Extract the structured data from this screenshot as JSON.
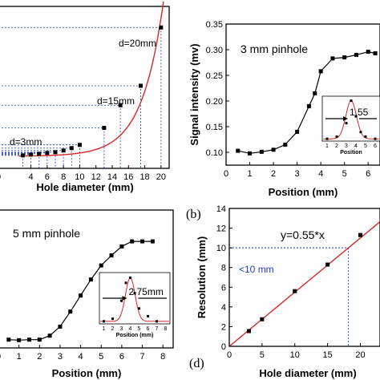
{
  "chart_data": [
    {
      "panel": "a",
      "type": "scatter",
      "xlabel": "Hole diameter (mm)",
      "ylabel": "",
      "xlim": [
        0,
        21
      ],
      "ylim": [
        0,
        10
      ],
      "xticks": [
        0,
        4,
        6,
        8,
        10,
        12,
        14,
        16,
        18,
        20
      ],
      "x": [
        3,
        4,
        5,
        6,
        7,
        8,
        9,
        10,
        13,
        15,
        17.5,
        20
      ],
      "y": [
        0.8,
        0.85,
        0.9,
        0.95,
        1.0,
        1.1,
        1.25,
        1.45,
        2.5,
        3.9,
        5.1,
        8.7
      ],
      "fit_color": "#d62728",
      "annotations": [
        "d=20mm",
        "d=15mm",
        "d=3mm"
      ],
      "grid": false
    },
    {
      "panel": "b",
      "tag": "(b)",
      "type": "line",
      "title": "3 mm pinhole",
      "xlabel": "Position (mm)",
      "ylabel": "Signal intensity (mv)",
      "xlim": [
        0,
        6.5
      ],
      "ylim": [
        0.075,
        0.35
      ],
      "xticks": [
        0,
        1,
        2,
        3,
        4,
        5,
        6
      ],
      "xtick_labels": [
        "0",
        "1",
        "2",
        "3",
        "4",
        "5",
        "6"
      ],
      "yticks": [
        0.1,
        0.15,
        0.2,
        0.25,
        0.3,
        0.35
      ],
      "ytick_labels": [
        "0.10",
        "0.15",
        "0.20",
        "0.25",
        "0.30",
        "0.35"
      ],
      "x": [
        0.5,
        1.0,
        1.5,
        2.0,
        2.5,
        3.0,
        3.5,
        3.75,
        4.0,
        4.5,
        5.0,
        5.5,
        6.0,
        6.3
      ],
      "y": [
        0.103,
        0.098,
        0.101,
        0.105,
        0.115,
        0.14,
        0.19,
        0.215,
        0.258,
        0.283,
        0.285,
        0.29,
        0.296,
        0.293
      ],
      "inset": {
        "type": "line",
        "xlabel": "Position",
        "xticks": [
          1,
          2,
          3,
          4,
          5,
          6
        ],
        "fit_label": "1.55",
        "x": [
          1,
          2,
          3,
          3.5,
          4,
          4.5,
          5,
          6
        ],
        "y": [
          0.05,
          0.1,
          0.4,
          0.9,
          0.55,
          0.2,
          0.1,
          0.05
        ],
        "fit_color": "#d62728"
      },
      "grid": false
    },
    {
      "panel": "c",
      "type": "line",
      "title": "5 mm pinhole",
      "xlabel": "Position (mm)",
      "ylabel": "",
      "xlim": [
        0,
        8.5
      ],
      "ylim": [
        0,
        1.1
      ],
      "xticks": [
        0,
        1,
        2,
        3,
        4,
        5,
        6,
        7,
        8
      ],
      "x": [
        0.5,
        1.0,
        1.5,
        2.0,
        2.5,
        3.0,
        3.5,
        4.0,
        4.5,
        5.0,
        5.5,
        6.0,
        6.5,
        7.0,
        7.5
      ],
      "y": [
        0.02,
        0.015,
        0.02,
        0.02,
        0.06,
        0.15,
        0.3,
        0.46,
        0.62,
        0.76,
        0.86,
        0.95,
        1.0,
        1.0,
        1.0
      ],
      "inset": {
        "type": "line",
        "xlabel": "Position (mm)",
        "xticks": [
          1,
          2,
          3,
          4,
          5,
          6,
          7,
          8
        ],
        "fit_label": "2.75mm",
        "x": [
          1,
          2,
          3,
          3.5,
          4,
          4.5,
          5,
          6,
          7
        ],
        "y": [
          0.05,
          0.1,
          0.45,
          0.8,
          0.9,
          0.6,
          0.3,
          0.15,
          0.05
        ],
        "fit_color": "#d62728"
      },
      "grid": false
    },
    {
      "panel": "d",
      "tag": "(d)",
      "type": "scatter",
      "xlabel": "Hole diameter (mm)",
      "ylabel": "Resolution (mm)",
      "equation": "y=0.55*x",
      "threshold_label": "<10 mm",
      "xlim": [
        0,
        23
      ],
      "ylim": [
        0,
        14
      ],
      "xticks": [
        0,
        5,
        10,
        15,
        20
      ],
      "xtick_labels": [
        "0",
        "5",
        "10",
        "15",
        "20"
      ],
      "yticks": [
        0,
        2,
        4,
        6,
        8,
        10,
        12,
        14
      ],
      "ytick_labels": [
        "0",
        "2",
        "4",
        "6",
        "8",
        "10",
        "12",
        "14"
      ],
      "x": [
        3,
        5,
        10,
        15,
        20
      ],
      "y": [
        1.55,
        2.75,
        5.6,
        8.3,
        11.3
      ],
      "fit_color": "#d62728",
      "threshold_color": "#1f3fbf",
      "grid": false
    }
  ]
}
